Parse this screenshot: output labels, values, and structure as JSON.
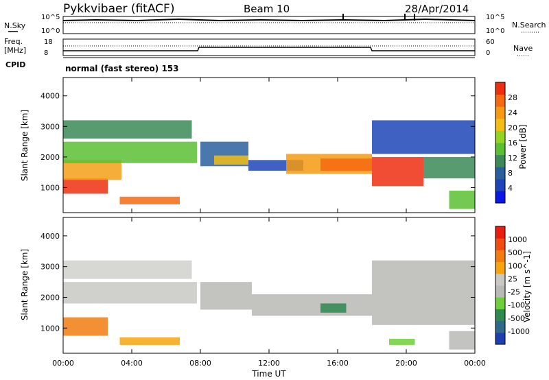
{
  "header": {
    "radar": "Pykkvibaer (fitACF)",
    "beam": "Beam 10",
    "date": "28/Apr/2014"
  },
  "panels": {
    "nsky": {
      "label": "N.Sky",
      "ticks": [
        "10^5",
        "10^0"
      ]
    },
    "nsearch": {
      "label": "N.Search",
      "ticks": [
        "10^5",
        "10^0"
      ]
    },
    "freq": {
      "label": "Freq.",
      "unit": "[MHz]",
      "ticks": [
        "18",
        "8"
      ]
    },
    "nave": {
      "label": "Nave",
      "ticks": [
        "60",
        "0"
      ]
    },
    "cpid": {
      "label": "CPID",
      "value": "normal (fast stereo) 153"
    }
  },
  "chart_data": [
    {
      "type": "heatmap",
      "name": "power",
      "xlabel": "",
      "ylabel": "Slant Range [km]",
      "y_ticks": [
        "1000",
        "2000",
        "3000",
        "4000"
      ],
      "ylim": [
        180,
        4600
      ],
      "xlim": [
        0,
        24
      ],
      "colorbar": {
        "label": "Power [dB]",
        "ticks": [
          "4",
          "8",
          "12",
          "16",
          "20",
          "24",
          "28"
        ],
        "colors": [
          "#0a17e6",
          "#1d45b7",
          "#2a5f9e",
          "#3c8a57",
          "#5bbf32",
          "#94d31f",
          "#f2be14",
          "#f59a12",
          "#f56a10",
          "#ef2d10"
        ]
      },
      "bands": [
        {
          "t0": 0.0,
          "t1": 2.6,
          "r0": 800,
          "r1": 1300,
          "color": "#ef3010"
        },
        {
          "t0": 0.0,
          "t1": 3.4,
          "r0": 1250,
          "r1": 1900,
          "color": "#f5a019"
        },
        {
          "t0": 0.0,
          "t1": 7.8,
          "r0": 1800,
          "r1": 2500,
          "color": "#5bbf32"
        },
        {
          "t0": 0.0,
          "t1": 7.5,
          "r0": 2600,
          "r1": 3200,
          "color": "#3c8a57"
        },
        {
          "t0": 3.3,
          "t1": 6.8,
          "r0": 450,
          "r1": 700,
          "color": "#f56a10"
        },
        {
          "t0": 8.0,
          "t1": 10.8,
          "r0": 1700,
          "r1": 2500,
          "color": "#2a5f9e"
        },
        {
          "t0": 8.8,
          "t1": 10.8,
          "r0": 1750,
          "r1": 2050,
          "color": "#f2be14"
        },
        {
          "t0": 10.8,
          "t1": 14.0,
          "r0": 1550,
          "r1": 1900,
          "color": "#1d45b7"
        },
        {
          "t0": 13.0,
          "t1": 18.0,
          "r0": 1450,
          "r1": 2100,
          "color": "#f59a12"
        },
        {
          "t0": 15.0,
          "t1": 18.0,
          "r0": 1550,
          "r1": 1950,
          "color": "#f56a10"
        },
        {
          "t0": 18.0,
          "t1": 21.0,
          "r0": 1050,
          "r1": 2000,
          "color": "#ef2d10"
        },
        {
          "t0": 18.0,
          "t1": 24.0,
          "r0": 2100,
          "r1": 3200,
          "color": "#1d45b7"
        },
        {
          "t0": 21.0,
          "t1": 24.0,
          "r0": 1300,
          "r1": 2000,
          "color": "#3c8a57"
        },
        {
          "t0": 22.5,
          "t1": 24.0,
          "r0": 300,
          "r1": 900,
          "color": "#5bbf32"
        }
      ]
    },
    {
      "type": "heatmap",
      "name": "velocity",
      "xlabel": "Time UT",
      "ylabel": "Slant Range [km]",
      "y_ticks": [
        "1000",
        "2000",
        "3000",
        "4000"
      ],
      "x_ticks": [
        "00:00",
        "04:00",
        "08:00",
        "12:00",
        "16:00",
        "20:00",
        "00:00"
      ],
      "ylim": [
        180,
        4600
      ],
      "xlim": [
        0,
        24
      ],
      "colorbar": {
        "label": "Velocity [m s^-1]",
        "ticks": [
          "1000",
          "500",
          "100",
          "25",
          "-25",
          "-100",
          "-500",
          "-1000"
        ],
        "colors": [
          "#1f3fb0",
          "#2f6a8a",
          "#2e8a4f",
          "#6fcf3a",
          "#b9b9b5",
          "#c8c8c4",
          "#f6a50f",
          "#f27c10",
          "#f04d10",
          "#ea1d10"
        ]
      },
      "bands": [
        {
          "t0": 0.0,
          "t1": 2.6,
          "r0": 750,
          "r1": 1350,
          "color": "#f27c10"
        },
        {
          "t0": 0.0,
          "t1": 7.8,
          "r0": 1800,
          "r1": 2500,
          "color": "#c8c8c4"
        },
        {
          "t0": 0.0,
          "t1": 7.5,
          "r0": 2600,
          "r1": 3200,
          "color": "#d0d0cc"
        },
        {
          "t0": 3.3,
          "t1": 6.8,
          "r0": 450,
          "r1": 700,
          "color": "#f6a50f"
        },
        {
          "t0": 8.0,
          "t1": 11.0,
          "r0": 1600,
          "r1": 2500,
          "color": "#b9b9b5"
        },
        {
          "t0": 11.0,
          "t1": 18.0,
          "r0": 1400,
          "r1": 2100,
          "color": "#b9b9b5"
        },
        {
          "t0": 15.0,
          "t1": 16.5,
          "r0": 1500,
          "r1": 1800,
          "color": "#2e8a4f"
        },
        {
          "t0": 18.0,
          "t1": 24.0,
          "r0": 1100,
          "r1": 3200,
          "color": "#b9b9b5"
        },
        {
          "t0": 19.0,
          "t1": 20.5,
          "r0": 450,
          "r1": 650,
          "color": "#6fcf3a"
        },
        {
          "t0": 22.5,
          "t1": 24.0,
          "r0": 300,
          "r1": 900,
          "color": "#b9b9b5"
        }
      ]
    }
  ]
}
